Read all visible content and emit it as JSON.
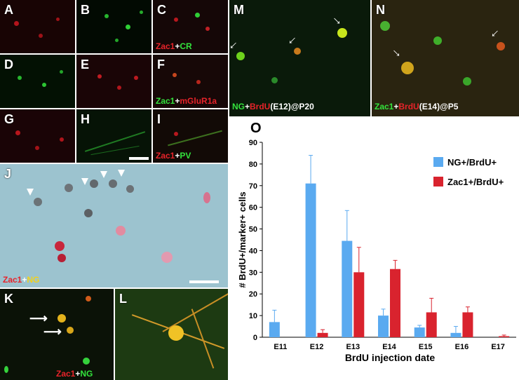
{
  "panels": {
    "A": "A",
    "B": "B",
    "C": "C",
    "D": "D",
    "E": "E",
    "F": "F",
    "G": "G",
    "H": "H",
    "I": "I",
    "J": "J",
    "K": "K",
    "L": "L",
    "M": "M",
    "N": "N",
    "O": "O"
  },
  "captions": {
    "c": {
      "a": "Zac1",
      "plus": "+",
      "b": "CR"
    },
    "f": {
      "a": "Zac1",
      "plus": "+",
      "b": "mGluR1a"
    },
    "i": {
      "a": "Zac1",
      "plus": "+",
      "b": "PV"
    },
    "j": {
      "a": "Zac1",
      "plus": "+",
      "b": "NG"
    },
    "k": {
      "a": "Zac1",
      "plus": "+",
      "b": "NG"
    },
    "m": {
      "a": "NG",
      "plus": "+",
      "b": "BrdU",
      "c": "(E12)@P20"
    },
    "n": {
      "a": "Zac1",
      "plus": "+",
      "b": "BrdU",
      "c": "(E14)@P5"
    }
  },
  "colors": {
    "blue_series": "#5aaaf0",
    "red_series": "#d9232e"
  },
  "chart_data": {
    "type": "bar",
    "categories": [
      "E11",
      "E12",
      "E13",
      "E14",
      "E15",
      "E16",
      "E17"
    ],
    "series": [
      {
        "name": "NG+/BrdU+",
        "values": [
          7,
          71,
          44.5,
          10,
          4.5,
          2,
          0
        ],
        "errors": [
          5.5,
          13,
          14,
          3,
          1,
          3,
          0
        ]
      },
      {
        "name": "Zac1+/BrdU+",
        "values": [
          0,
          2,
          30,
          31.5,
          11.5,
          11.5,
          0.5
        ],
        "errors": [
          0,
          1.5,
          11.5,
          4,
          6.5,
          2.5,
          0.5
        ]
      }
    ],
    "xlabel": "BrdU injection date",
    "ylabel": "# BrdU+/marker+ cells",
    "ylim": [
      0,
      90
    ],
    "yticks": [
      0,
      10,
      20,
      30,
      40,
      50,
      60,
      70,
      80,
      90
    ],
    "legend_position": "top-right",
    "grid": false
  }
}
